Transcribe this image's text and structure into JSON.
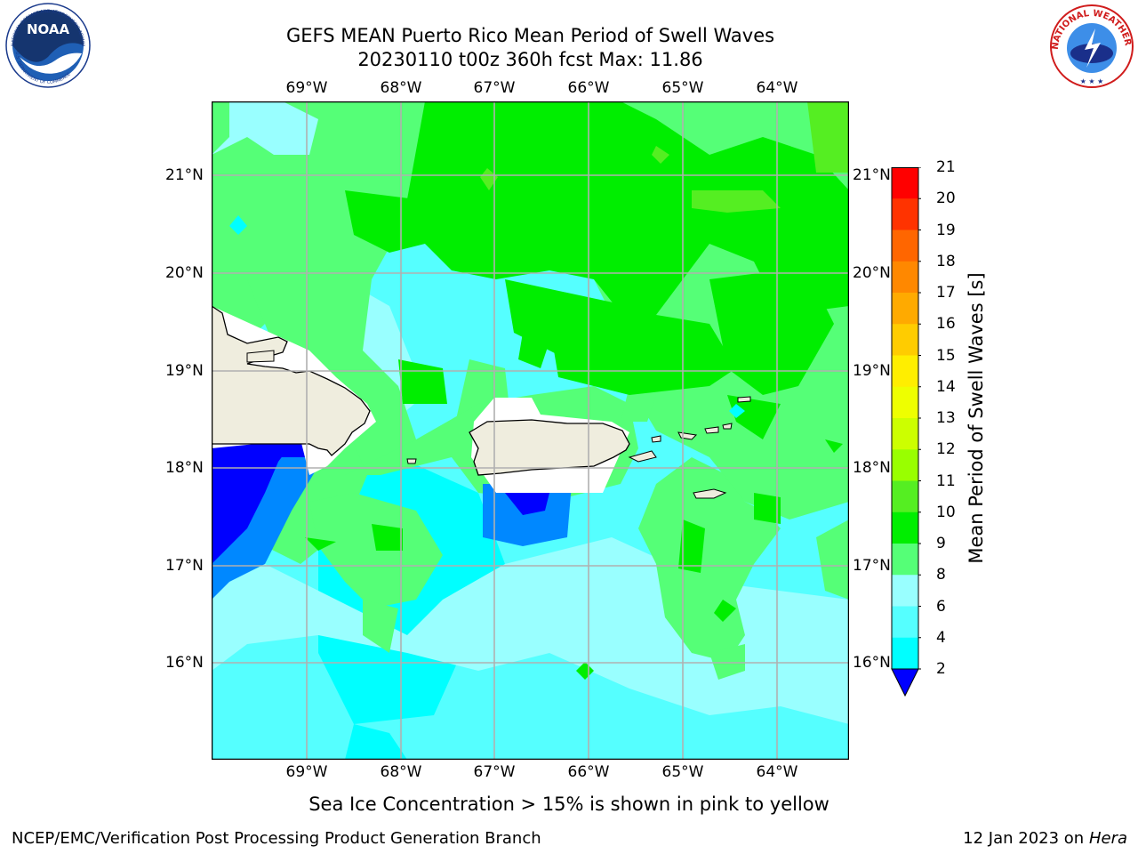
{
  "title": {
    "line1": "GEFS MEAN Puerto Rico Mean Period of Swell Waves",
    "line2": "20230110 t00z 360h fcst   Max: 11.86"
  },
  "map": {
    "lon_labels": [
      "69°W",
      "68°W",
      "67°W",
      "66°W",
      "65°W",
      "64°W"
    ],
    "lat_labels": [
      "21°N",
      "20°N",
      "19°N",
      "18°N",
      "17°N",
      "16°N"
    ],
    "lon_values": [
      -69,
      -68,
      -67,
      -66,
      -65,
      -64
    ],
    "lat_values": [
      21,
      20,
      19,
      18,
      17,
      16
    ],
    "lon_range": [
      -70.0,
      -63.25
    ],
    "lat_range": [
      15.0,
      21.75
    ],
    "gridlines": true,
    "land_color": "#efedde"
  },
  "colorbar": {
    "label": "Mean Period of Swell Waves [s]",
    "ticks": [
      "21",
      "20",
      "19",
      "18",
      "17",
      "16",
      "15",
      "14",
      "13",
      "12",
      "11",
      "10",
      "9",
      "8",
      "6",
      "4",
      "2"
    ],
    "colors": [
      "#ff0000",
      "#ff3300",
      "#ff6600",
      "#ff8800",
      "#ffaa00",
      "#ffcc00",
      "#ffee00",
      "#eeff00",
      "#ccff00",
      "#99ff00",
      "#55ee22",
      "#00ee00",
      "#55ff77",
      "#99ffff",
      "#55ffff",
      "#00ffff",
      "#0088ff",
      "#0000ff"
    ],
    "extend_color": "#0000ff"
  },
  "note": "Sea Ice Concentration > 15% is shown in pink to yellow",
  "footer": {
    "left": "NCEP/EMC/Verification Post Processing Product Generation Branch",
    "date": "12 Jan 2023 on",
    "host": "Hera"
  },
  "logos": {
    "left": "NOAA",
    "right": "NATIONAL WEATHER SERVICE",
    "noaa_arc_top": "NATIONAL OCEANIC AND ATMOSPHERIC ADMINISTRATION",
    "noaa_arc_bottom": "U.S. DEPARTMENT OF COMMERCE"
  },
  "chart_data": {
    "type": "heatmap",
    "title": "GEFS MEAN Puerto Rico Mean Period of Swell Waves",
    "subtitle": "20230110 t00z 360h fcst   Max: 11.86",
    "variable": "Mean Period of Swell Waves [s]",
    "max_value": 11.86,
    "x_range": [
      -70.0,
      -63.25
    ],
    "y_range": [
      15.0,
      21.75
    ],
    "color_levels": [
      2,
      4,
      6,
      8,
      9,
      10,
      11,
      12,
      13,
      14,
      15,
      16,
      17,
      18,
      19,
      20,
      21
    ]
  }
}
